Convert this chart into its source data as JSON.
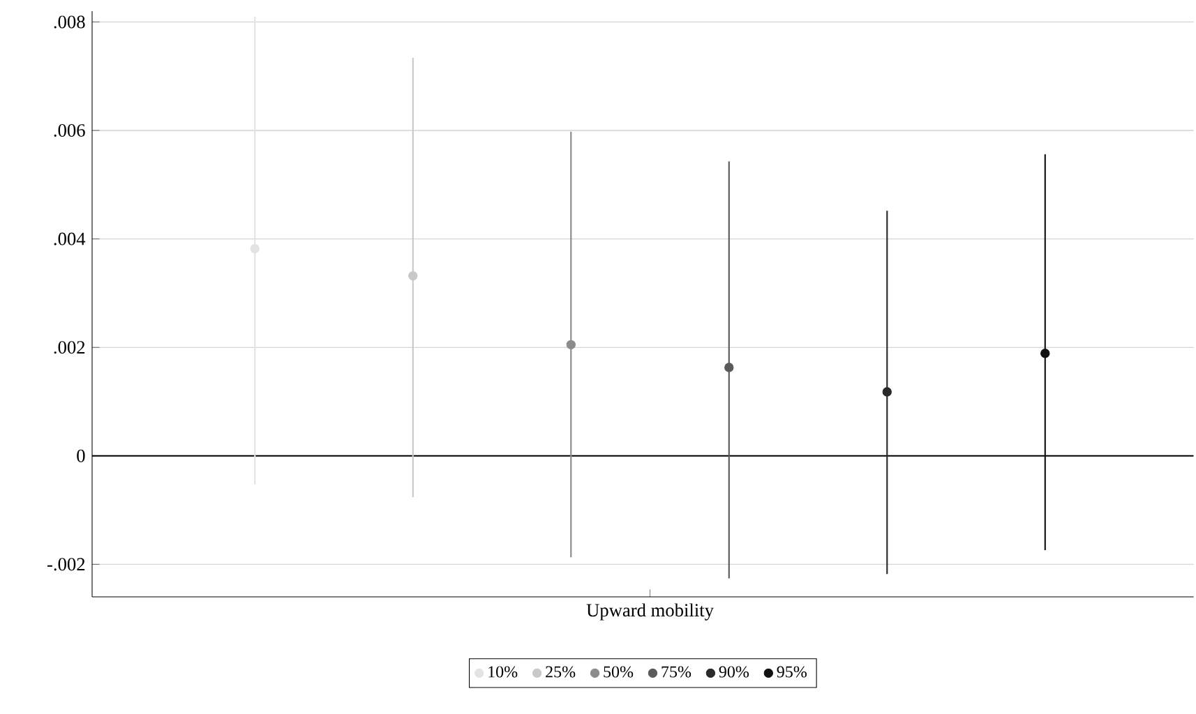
{
  "chart_data": {
    "type": "scatter",
    "categories": [
      "Upward mobility"
    ],
    "series": [
      {
        "name": "10%",
        "color": "#e3e3e3",
        "values": [
          0.00382
        ],
        "errors": [
          [
            -0.00053,
            0.0081
          ]
        ]
      },
      {
        "name": "25%",
        "color": "#c8c8c8",
        "values": [
          0.00332
        ],
        "errors": [
          [
            -0.00076,
            0.00734
          ]
        ]
      },
      {
        "name": "50%",
        "color": "#8c8c8c",
        "values": [
          0.00205
        ],
        "errors": [
          [
            -0.00187,
            0.00598
          ]
        ]
      },
      {
        "name": "75%",
        "color": "#5a5a5a",
        "values": [
          0.00163
        ],
        "errors": [
          [
            -0.00226,
            0.00543
          ]
        ]
      },
      {
        "name": "90%",
        "color": "#2a2a2a",
        "values": [
          0.00118
        ],
        "errors": [
          [
            -0.00218,
            0.00452
          ]
        ]
      },
      {
        "name": "95%",
        "color": "#111111",
        "values": [
          0.00189
        ],
        "errors": [
          [
            -0.00174,
            0.00556
          ]
        ]
      }
    ],
    "ylim": [
      -0.0026,
      0.0082
    ],
    "yticks": [
      {
        "value": -0.002,
        "label": "-.002"
      },
      0,
      {
        "value": 0.002,
        "label": ".002"
      },
      {
        "value": 0.004,
        "label": ".004"
      },
      {
        "value": 0.006,
        "label": ".006"
      },
      {
        "value": 0.008,
        "label": ".008"
      }
    ],
    "ref_lines": [
      {
        "axis": "y",
        "value": 0,
        "color": "#000000"
      }
    ],
    "grid": "y",
    "legend": "bottom",
    "marker": "circle"
  }
}
